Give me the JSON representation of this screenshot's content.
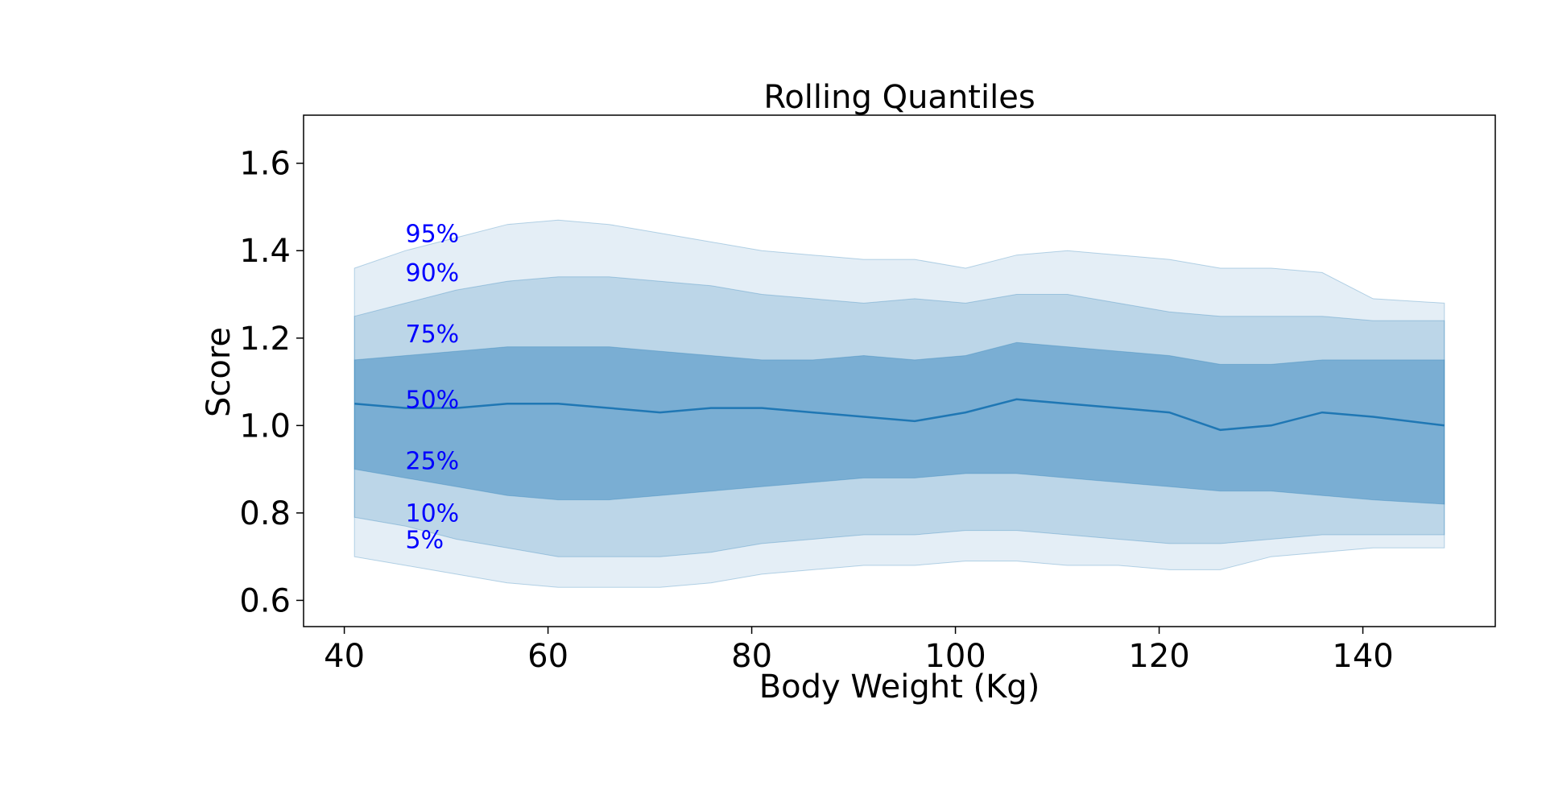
{
  "chart_data": {
    "type": "area",
    "title": "Rolling Quantiles",
    "xlabel": "Body Weight (Kg)",
    "ylabel": "Score",
    "xlim": [
      36,
      153
    ],
    "ylim": [
      0.54,
      1.71
    ],
    "xticks": [
      40,
      60,
      80,
      100,
      120,
      140
    ],
    "yticks": [
      0.6,
      0.8,
      1.0,
      1.2,
      1.4,
      1.6
    ],
    "xtick_labels": [
      "40",
      "60",
      "80",
      "100",
      "120",
      "140"
    ],
    "ytick_labels": [
      "0.6",
      "0.8",
      "1.0",
      "1.2",
      "1.4",
      "1.6"
    ],
    "grid": false,
    "colors": {
      "band": "#1f77b4",
      "median": "#1f77b4",
      "labels": "#0000ff"
    },
    "x": [
      41,
      46,
      51,
      56,
      61,
      66,
      71,
      76,
      81,
      86,
      91,
      96,
      101,
      106,
      111,
      116,
      121,
      126,
      131,
      136,
      141,
      148
    ],
    "quantile_labels": [
      {
        "text": "95%",
        "x": 46,
        "y": 1.42
      },
      {
        "text": "90%",
        "x": 46,
        "y": 1.33
      },
      {
        "text": "75%",
        "x": 46,
        "y": 1.19
      },
      {
        "text": "50%",
        "x": 46,
        "y": 1.04
      },
      {
        "text": "25%",
        "x": 46,
        "y": 0.9
      },
      {
        "text": "10%",
        "x": 46,
        "y": 0.78
      },
      {
        "text": "5%",
        "x": 46,
        "y": 0.72
      }
    ],
    "series": [
      {
        "name": "5%",
        "values": [
          0.7,
          0.68,
          0.66,
          0.64,
          0.63,
          0.63,
          0.63,
          0.64,
          0.66,
          0.67,
          0.68,
          0.68,
          0.69,
          0.69,
          0.68,
          0.68,
          0.67,
          0.67,
          0.7,
          0.71,
          0.72,
          0.72
        ]
      },
      {
        "name": "10%",
        "values": [
          0.79,
          0.77,
          0.74,
          0.72,
          0.7,
          0.7,
          0.7,
          0.71,
          0.73,
          0.74,
          0.75,
          0.75,
          0.76,
          0.76,
          0.75,
          0.74,
          0.73,
          0.73,
          0.74,
          0.75,
          0.75,
          0.75
        ]
      },
      {
        "name": "25%",
        "values": [
          0.9,
          0.88,
          0.86,
          0.84,
          0.83,
          0.83,
          0.84,
          0.85,
          0.86,
          0.87,
          0.88,
          0.88,
          0.89,
          0.89,
          0.88,
          0.87,
          0.86,
          0.85,
          0.85,
          0.84,
          0.83,
          0.82
        ]
      },
      {
        "name": "50%",
        "values": [
          1.05,
          1.04,
          1.04,
          1.05,
          1.05,
          1.04,
          1.03,
          1.04,
          1.04,
          1.03,
          1.02,
          1.01,
          1.03,
          1.06,
          1.05,
          1.04,
          1.03,
          0.99,
          1.0,
          1.03,
          1.02,
          1.0
        ]
      },
      {
        "name": "75%",
        "values": [
          1.15,
          1.16,
          1.17,
          1.18,
          1.18,
          1.18,
          1.17,
          1.16,
          1.15,
          1.15,
          1.16,
          1.15,
          1.16,
          1.19,
          1.18,
          1.17,
          1.16,
          1.14,
          1.14,
          1.15,
          1.15,
          1.15
        ]
      },
      {
        "name": "90%",
        "values": [
          1.25,
          1.28,
          1.31,
          1.33,
          1.34,
          1.34,
          1.33,
          1.32,
          1.3,
          1.29,
          1.28,
          1.29,
          1.28,
          1.3,
          1.3,
          1.28,
          1.26,
          1.25,
          1.25,
          1.25,
          1.24,
          1.24
        ]
      },
      {
        "name": "95%",
        "values": [
          1.36,
          1.4,
          1.43,
          1.46,
          1.47,
          1.46,
          1.44,
          1.42,
          1.4,
          1.39,
          1.38,
          1.38,
          1.36,
          1.39,
          1.4,
          1.39,
          1.38,
          1.36,
          1.36,
          1.35,
          1.29,
          1.28
        ]
      }
    ]
  }
}
